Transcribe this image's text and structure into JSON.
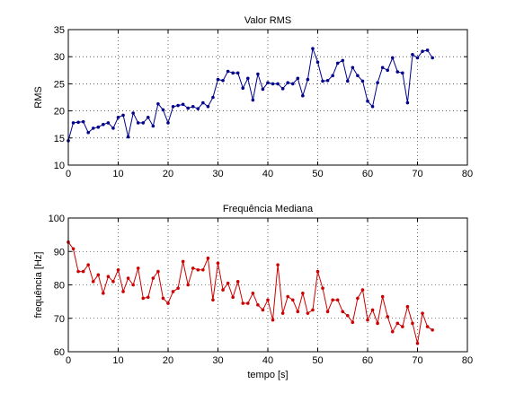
{
  "chart_data": [
    {
      "type": "line",
      "title": "Valor RMS",
      "ylabel": "RMS",
      "x": [
        0,
        1,
        2,
        3,
        4,
        5,
        6,
        7,
        8,
        9,
        10,
        11,
        12,
        13,
        14,
        15,
        16,
        17,
        18,
        19,
        20,
        21,
        22,
        23,
        24,
        25,
        26,
        27,
        28,
        29,
        30,
        31,
        32,
        33,
        34,
        35,
        36,
        37,
        38,
        39,
        40,
        41,
        42,
        43,
        44,
        45,
        46,
        47,
        48,
        49,
        50,
        51,
        52,
        53,
        54,
        55,
        56,
        57,
        58,
        59,
        60,
        61,
        62,
        63,
        64,
        65,
        66,
        67,
        68,
        69,
        70,
        71,
        72,
        73
      ],
      "series": [
        {
          "color": "#00008b",
          "values": [
            14.5,
            17.8,
            17.9,
            18,
            16,
            16.8,
            17,
            17.5,
            17.8,
            16.8,
            18.8,
            19.2,
            15.2,
            19.6,
            17.8,
            17.8,
            18.8,
            17.2,
            21.3,
            20.2,
            17.8,
            20.8,
            21,
            21.2,
            20.5,
            20.8,
            20.4,
            21.5,
            20.8,
            22.5,
            25.8,
            25.6,
            27.3,
            27,
            27,
            24.2,
            26,
            22,
            26.8,
            24,
            25.2,
            25,
            25,
            24.1,
            25.2,
            25,
            26,
            22.8,
            25.8,
            31.5,
            29,
            25.5,
            25.6,
            26.5,
            28.8,
            29.3,
            25.5,
            28,
            26.5,
            25.5,
            21.8,
            20.8,
            25.2,
            28,
            27.5,
            29.8,
            27.2,
            27,
            21.5,
            30.4,
            29.8,
            31,
            31.2,
            29.8
          ]
        }
      ],
      "xlim": [
        0,
        80
      ],
      "xticks": [
        0,
        10,
        20,
        30,
        40,
        50,
        60,
        70,
        80
      ],
      "ylim": [
        10,
        35
      ],
      "yticks": [
        10,
        15,
        20,
        25,
        30,
        35
      ],
      "grid": true
    },
    {
      "type": "line",
      "title": "Frequência Mediana",
      "xlabel": "tempo [s]",
      "ylabel": "frequência [Hz]",
      "x": [
        0,
        1,
        2,
        3,
        4,
        5,
        6,
        7,
        8,
        9,
        10,
        11,
        12,
        13,
        14,
        15,
        16,
        17,
        18,
        19,
        20,
        21,
        22,
        23,
        24,
        25,
        26,
        27,
        28,
        29,
        30,
        31,
        32,
        33,
        34,
        35,
        36,
        37,
        38,
        39,
        40,
        41,
        42,
        43,
        44,
        45,
        46,
        47,
        48,
        49,
        50,
        51,
        52,
        53,
        54,
        55,
        56,
        57,
        58,
        59,
        60,
        61,
        62,
        63,
        64,
        65,
        66,
        67,
        68,
        69,
        70,
        71,
        72,
        73
      ],
      "series": [
        {
          "color": "#cc0000",
          "values": [
            92.8,
            90.8,
            84,
            84,
            86,
            81,
            83,
            77.5,
            82.5,
            81,
            84.5,
            78,
            82,
            80,
            85,
            76,
            76.3,
            82,
            84,
            76,
            74.5,
            78,
            79,
            87,
            80,
            85,
            84.5,
            84.5,
            88,
            75.5,
            86.5,
            78.5,
            80.5,
            76.3,
            81,
            74.5,
            74.5,
            77.5,
            74,
            72.5,
            75.5,
            69.5,
            86,
            71.5,
            76.5,
            75.5,
            72,
            77.5,
            71.5,
            72.5,
            84,
            79,
            72,
            75.5,
            75.5,
            72,
            70.8,
            68.8,
            76,
            78.5,
            69.5,
            72.5,
            68.5,
            76.5,
            70.5,
            66,
            68.5,
            67.5,
            73.5,
            68.5,
            62.5,
            71.5,
            67.5,
            66.5
          ]
        }
      ],
      "xlim": [
        0,
        80
      ],
      "xticks": [
        0,
        10,
        20,
        30,
        40,
        50,
        60,
        70,
        80
      ],
      "ylim": [
        60,
        100
      ],
      "yticks": [
        60,
        70,
        80,
        90,
        100
      ],
      "grid": true
    }
  ]
}
